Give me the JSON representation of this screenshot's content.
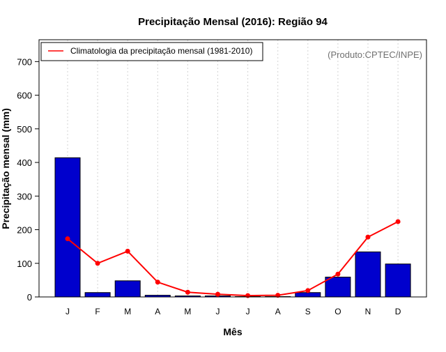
{
  "chart_data": {
    "type": "bar",
    "title": "Precipitação Mensal (2016): Região 94",
    "xlabel": "Mês",
    "ylabel": "Precipitação mensal (mm)",
    "categories": [
      "J",
      "F",
      "M",
      "A",
      "M",
      "J",
      "J",
      "A",
      "S",
      "O",
      "N",
      "D"
    ],
    "ylim": [
      0,
      765
    ],
    "yticks": [
      0,
      100,
      200,
      300,
      400,
      500,
      600,
      700
    ],
    "grid": "vertical-dotted",
    "legend_position": "top-left",
    "credit": "(Produto:CPTEC/INPE)",
    "series": [
      {
        "name": "Precipitação mensal 2016",
        "kind": "bar",
        "color": "#0000cd",
        "values": [
          414,
          13,
          48,
          5,
          3,
          3,
          1,
          1,
          13,
          59,
          134,
          98
        ]
      },
      {
        "name": "Climatologia da precipitação mensal (1981-2010)",
        "kind": "line",
        "color": "#ff0000",
        "values": [
          173,
          100,
          136,
          44,
          14,
          8,
          4,
          5,
          19,
          68,
          178,
          224
        ]
      }
    ]
  }
}
